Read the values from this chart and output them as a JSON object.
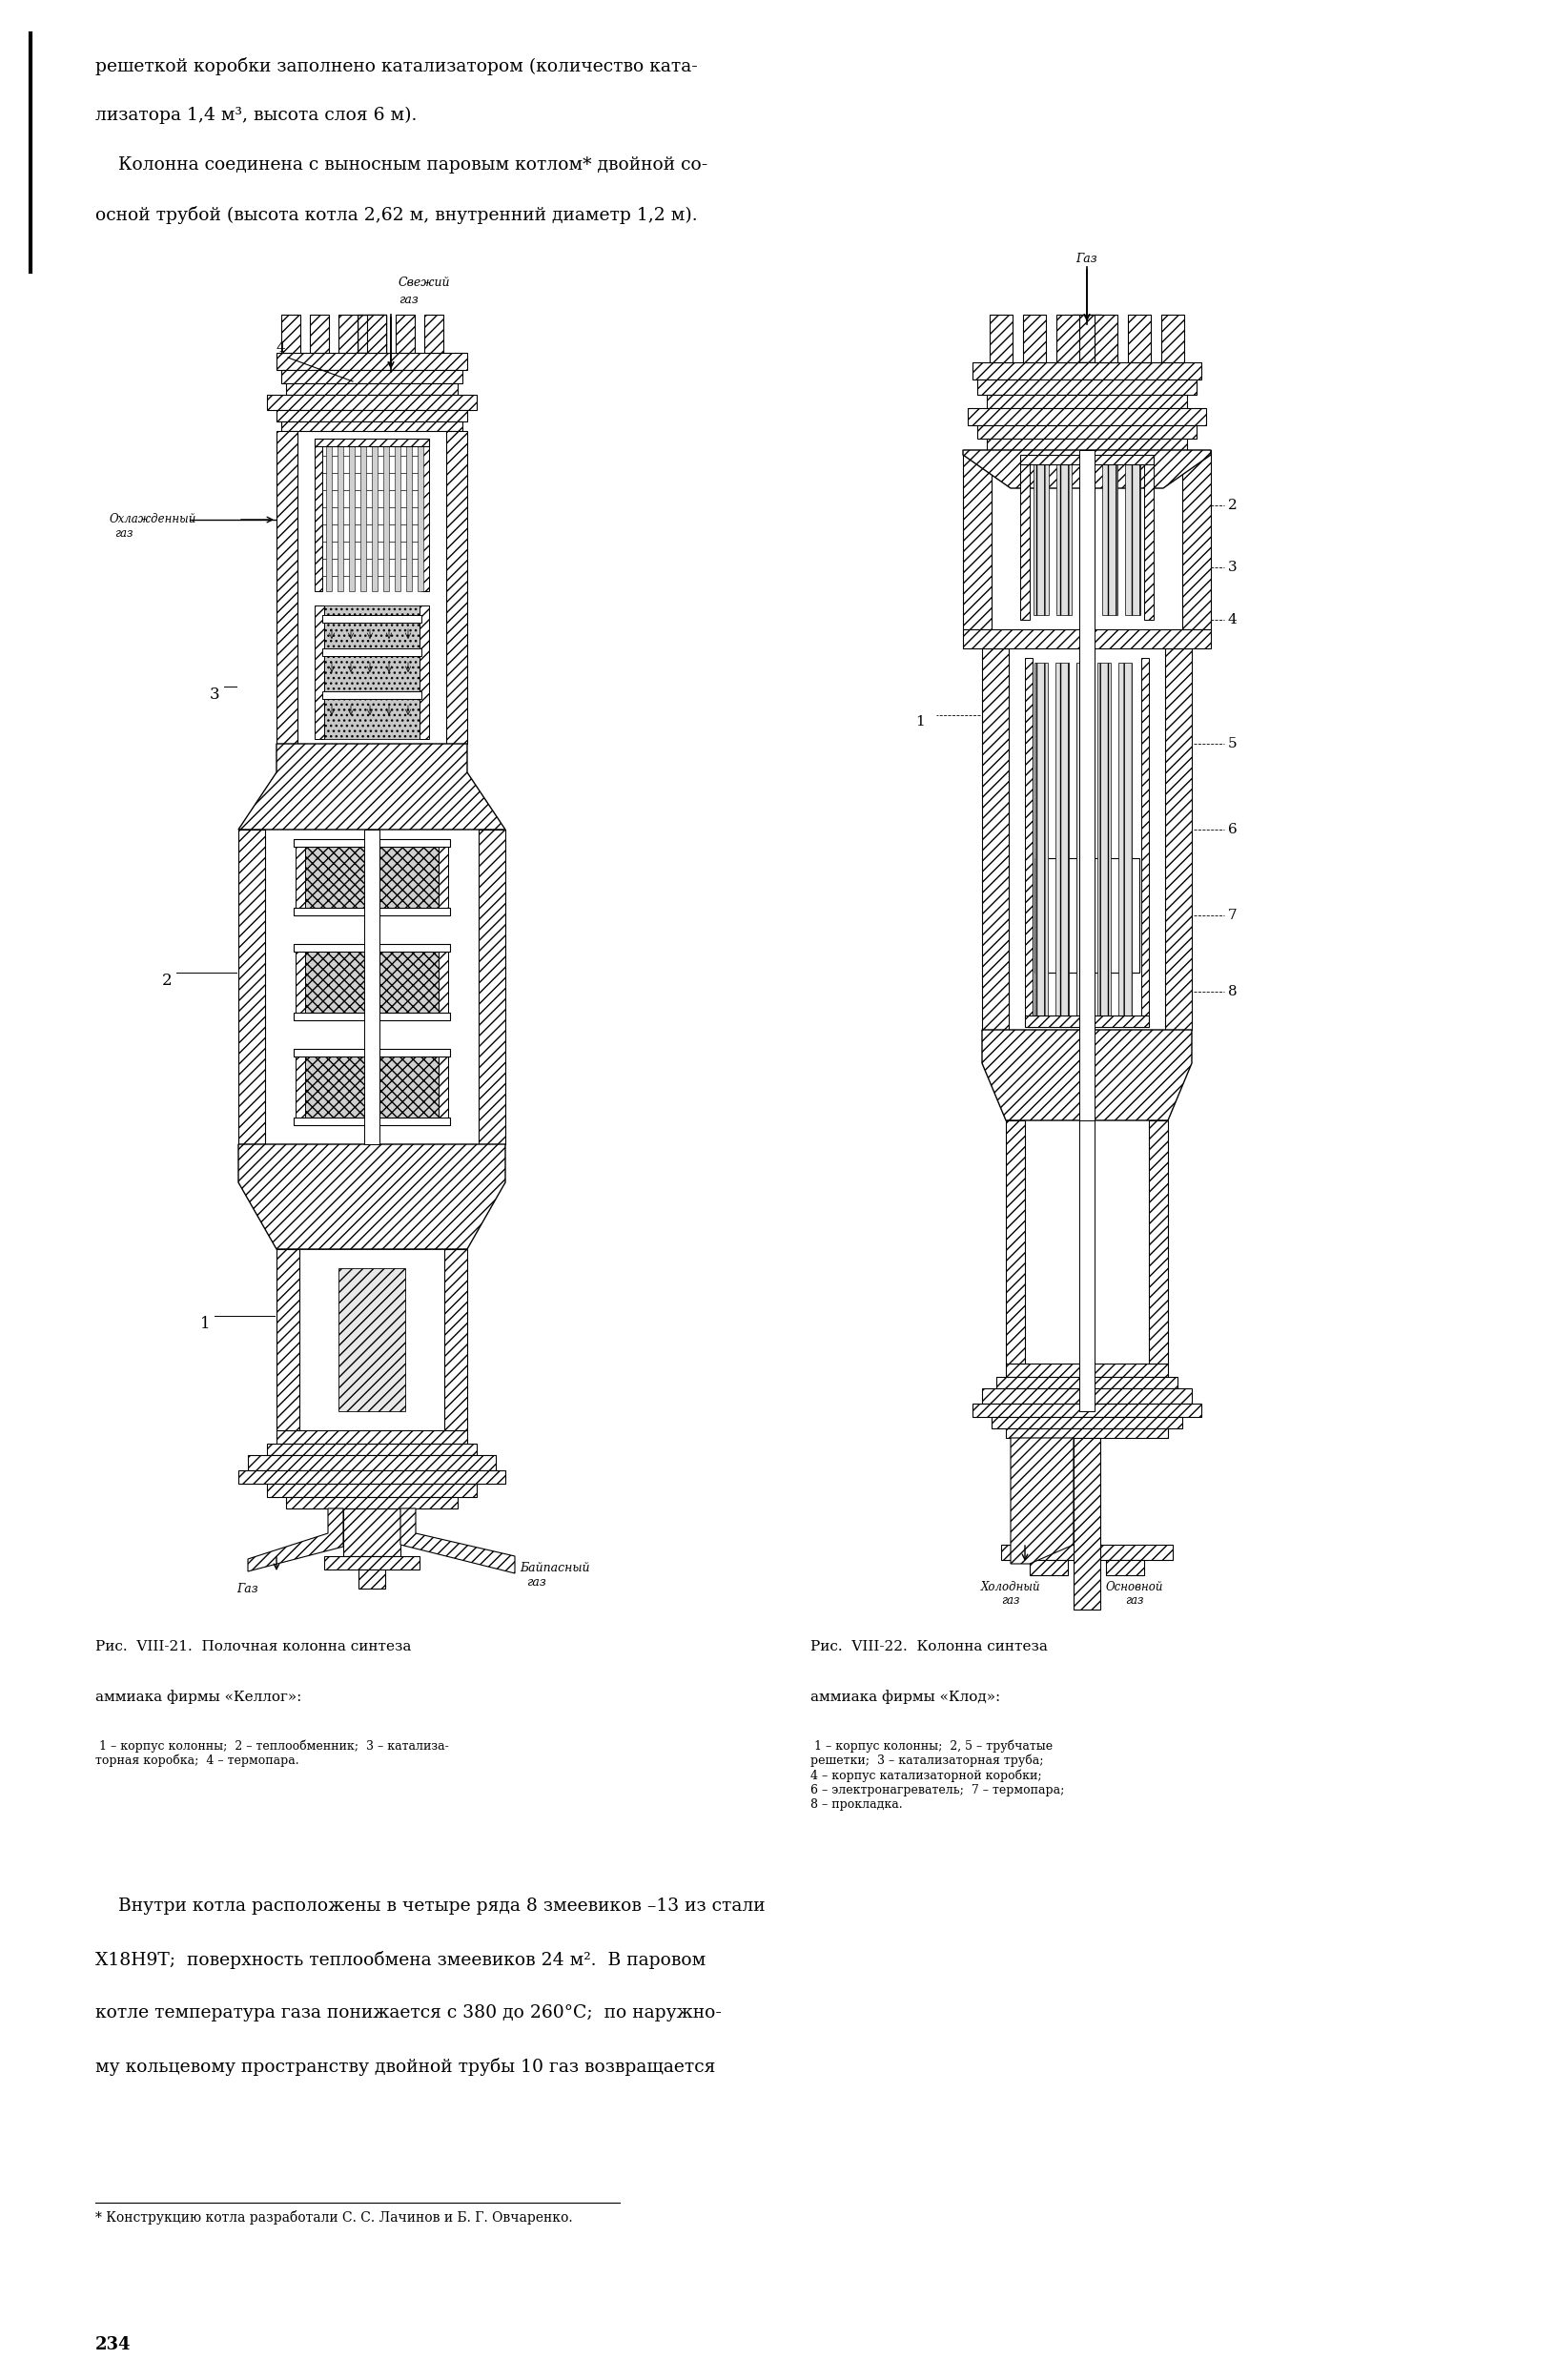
{
  "bg_color": "#ffffff",
  "text_color": "#000000",
  "page_width": 16.32,
  "page_height": 24.96,
  "top_text_lines": [
    "решеткой коробки заполнено катализатором (количество ката-",
    "лизатора 1,4 м³, высота слоя 6 м).",
    "    Колонна соединена с выносным паровым котлом* двойной со-",
    "осной трубой (высота котла 2,62 м, внутренний диаметр 1,2 м)."
  ],
  "bottom_text_lines": [
    "    Внутри котла расположены в четыре ряда 8 змеевиков –13 из стали",
    "Х18Н9Т;  поверхность теплообмена змеевиков 24 м².  В паровом",
    "котле температура газа понижается с 380 до 260°С;  по наружно-",
    "му кольцевому пространству двойной трубы 10 газ возвращается"
  ],
  "footnote": "* Конструкцию котла разработали С. С. Лачинов и Б. Г. Овчаренко.",
  "page_number": "234",
  "fig_left_title": "Рис.  VIII-21.  Полочная колонна синтеза",
  "fig_left_title2": "аммиака фирмы «Келлог»:",
  "fig_left_caption": "                                                                ",
  "fig_left_caption_real": " 1 – корпус колонны;  2 – теплообменник;  3 – катализа-\nторная коробка;  4 – термопара.",
  "fig_right_title": "Рис.  VIII-22.  Колонна синтеза",
  "fig_right_title2": "аммиака фирмы «Клод»:",
  "fig_right_caption": " 1 – корпус колонны;  2, 5 – трубчатые\nрешетки;  3 – катализаторная труба;\n4 – корпус катализаторной коробки;\n6 – электронагреватель;  7 – термопара;\n8 – прокладка."
}
